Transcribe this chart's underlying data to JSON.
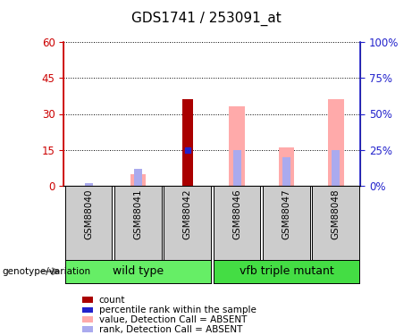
{
  "title": "GDS1741 / 253091_at",
  "samples": [
    "GSM88040",
    "GSM88041",
    "GSM88042",
    "GSM88046",
    "GSM88047",
    "GSM88048"
  ],
  "count_values": [
    0,
    0,
    36,
    0,
    0,
    0
  ],
  "percentile_rank_values": [
    0,
    0,
    15,
    0,
    0,
    0
  ],
  "absent_value_values": [
    0,
    5,
    0,
    33,
    16,
    36
  ],
  "absent_rank_values": [
    1,
    7,
    0,
    15,
    12,
    15
  ],
  "ylim_left": [
    0,
    60
  ],
  "ylim_right": [
    0,
    100
  ],
  "yticks_left": [
    0,
    15,
    30,
    45,
    60
  ],
  "yticks_right": [
    0,
    25,
    50,
    75,
    100
  ],
  "ytick_labels_left": [
    "0",
    "15",
    "30",
    "45",
    "60"
  ],
  "ytick_labels_right": [
    "0%",
    "25%",
    "50%",
    "75%",
    "100%"
  ],
  "colors": {
    "count": "#aa0000",
    "percentile_rank": "#2222cc",
    "absent_value": "#ffaaaa",
    "absent_rank": "#aaaaee",
    "axis_left": "#cc0000",
    "axis_right": "#2222cc",
    "group_bg_wt": "#66ee66",
    "group_bg_mut": "#44dd44",
    "sample_bg": "#cccccc"
  },
  "wt_group_name": "wild type",
  "mut_group_name": "vfb triple mutant",
  "wt_count": 3,
  "mut_count": 3,
  "legend_items": [
    {
      "label": "count",
      "color": "#aa0000"
    },
    {
      "label": "percentile rank within the sample",
      "color": "#2222cc"
    },
    {
      "label": "value, Detection Call = ABSENT",
      "color": "#ffaaaa"
    },
    {
      "label": "rank, Detection Call = ABSENT",
      "color": "#aaaaee"
    }
  ],
  "genotype_label": "genotype/variation"
}
